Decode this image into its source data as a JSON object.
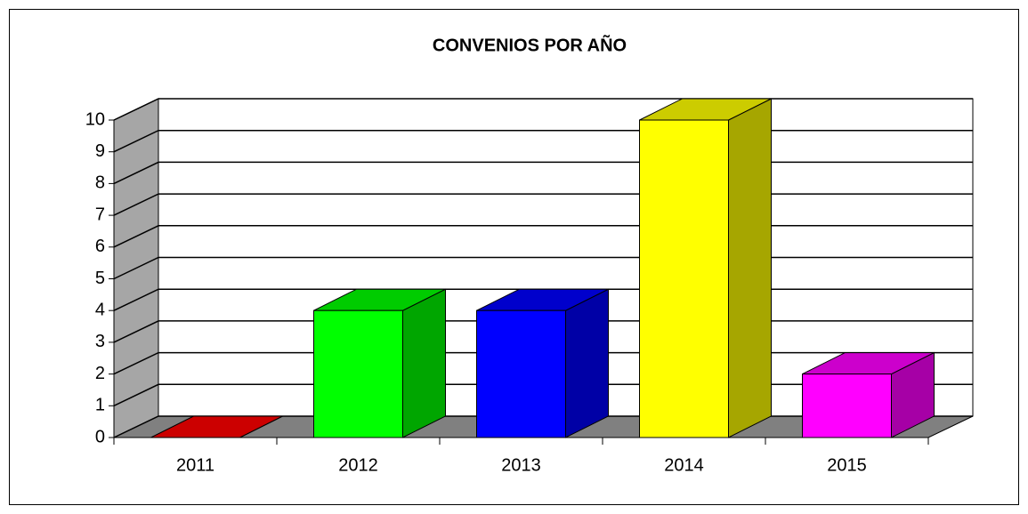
{
  "chart_data": {
    "type": "bar3d",
    "title": "CONVENIOS  POR AÑO",
    "categories": [
      "2011",
      "2012",
      "2013",
      "2014",
      "2015"
    ],
    "values": [
      0,
      4,
      4,
      10,
      2
    ],
    "colors": [
      "#ff0000",
      "#00ff00",
      "#0000ff",
      "#ffff00",
      "#ff00ff"
    ],
    "ylim": [
      0,
      10
    ],
    "yticks": [
      0,
      1,
      2,
      3,
      4,
      5,
      6,
      7,
      8,
      9,
      10
    ],
    "grid": true
  }
}
